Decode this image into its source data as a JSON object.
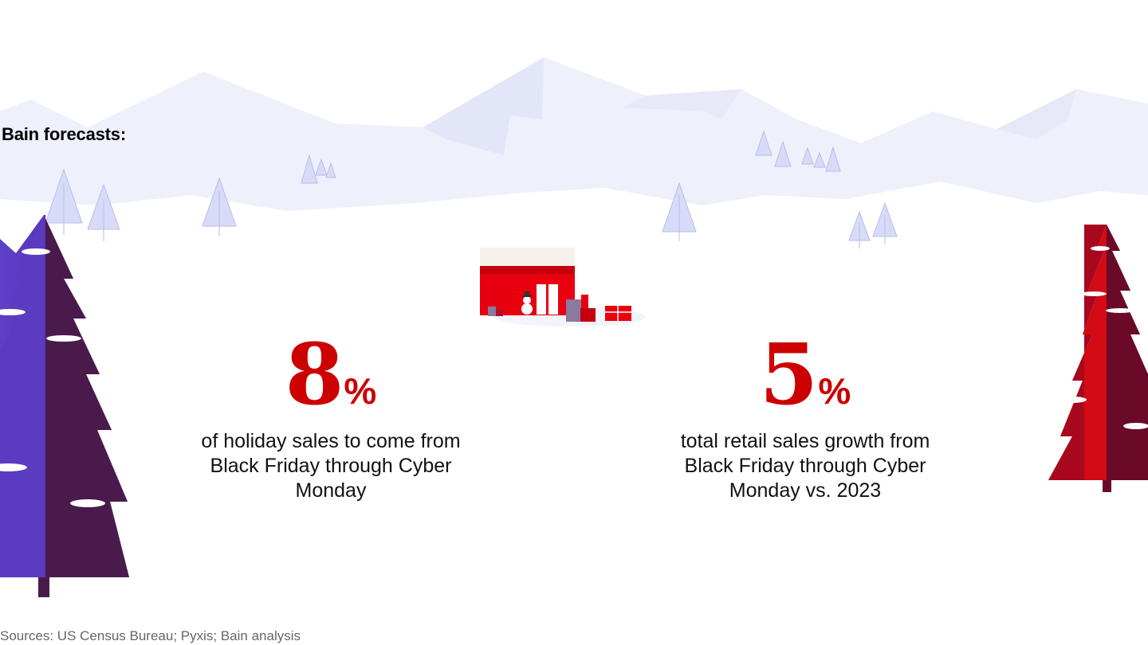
{
  "heading": "Bain forecasts:",
  "stats": [
    {
      "value": "8",
      "unit": "%",
      "description": "of holiday sales to come from Black Friday through Cyber Monday"
    },
    {
      "value": "5",
      "unit": "%",
      "description": "total retail sales growth from Black Friday through Cyber Monday vs. 2023"
    }
  ],
  "source": "Sources: US Census Bureau; Pyxis; Bain analysis",
  "colors": {
    "accent": "#cc0000",
    "mountain": "#eef0fb",
    "mountain_shade": "#e4e7f8",
    "small_tree": "#d8dbf7",
    "purple_tree_light": "#5b3bc0",
    "purple_tree_dark": "#4a1a4d",
    "red_tree_light": "#d40a14",
    "red_tree_dark": "#5c0a2a"
  }
}
